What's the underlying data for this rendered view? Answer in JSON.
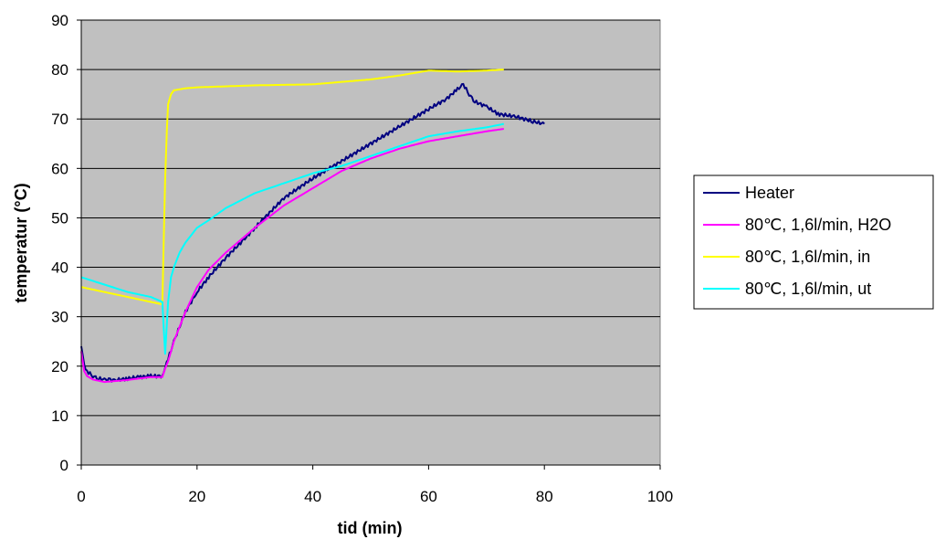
{
  "chart_data": {
    "type": "line",
    "title": "",
    "xlabel": "tid (min)",
    "ylabel": "temperatur (°C)",
    "xlim": [
      0,
      100
    ],
    "ylim": [
      0,
      90
    ],
    "xticks": [
      0,
      20,
      40,
      60,
      80,
      100
    ],
    "yticks": [
      0,
      10,
      20,
      30,
      40,
      50,
      60,
      70,
      80,
      90
    ],
    "grid": "horizontal",
    "plot_background": "#c0c0c0",
    "legend_position": "right",
    "series": [
      {
        "name": "Heater",
        "color": "#000080",
        "x": [
          0,
          0.5,
          1,
          2,
          3,
          4,
          5,
          6,
          8,
          10,
          12,
          14,
          14.5,
          15,
          16,
          18,
          20,
          22,
          25,
          28,
          30,
          35,
          40,
          45,
          50,
          55,
          60,
          63,
          65,
          66,
          67,
          68,
          70,
          72,
          75,
          78,
          80
        ],
        "y": [
          24,
          20,
          19,
          18,
          17.5,
          17.3,
          17.2,
          17.2,
          17.5,
          17.8,
          18,
          18,
          20,
          21.5,
          25,
          31,
          35,
          38,
          42,
          45.5,
          48,
          54,
          58,
          61.5,
          65,
          68.5,
          72,
          74,
          76,
          77,
          75,
          73.5,
          72.5,
          71,
          70.5,
          69.5,
          69
        ]
      },
      {
        "name": "80℃, 1,6l/min, H2O",
        "color": "#ff00ff",
        "x": [
          0,
          0.5,
          1,
          2,
          4,
          6,
          8,
          10,
          12,
          14,
          14.5,
          15,
          16,
          18,
          20,
          22,
          25,
          28,
          30,
          35,
          40,
          45,
          50,
          55,
          60,
          65,
          70,
          73
        ],
        "y": [
          23,
          19,
          18,
          17.3,
          16.8,
          17,
          17.2,
          17.5,
          17.8,
          17.8,
          19.5,
          21,
          25,
          31,
          36,
          39.5,
          43,
          46,
          48,
          52.5,
          56,
          59.5,
          62,
          64,
          65.5,
          66.5,
          67.5,
          68
        ]
      },
      {
        "name": "80℃, 1,6l/min, in",
        "color": "#ffff00",
        "x": [
          0,
          4,
          8,
          12,
          14,
          14.5,
          14.8,
          15,
          15.5,
          16,
          18,
          20,
          25,
          30,
          40,
          50,
          55,
          60,
          65,
          70,
          73
        ],
        "y": [
          36,
          35,
          34,
          33,
          32.5,
          58,
          68,
          73,
          75,
          75.8,
          76.2,
          76.4,
          76.6,
          76.8,
          77,
          78,
          78.8,
          79.8,
          79.6,
          79.8,
          80
        ]
      },
      {
        "name": "80℃, 1,6l/min, ut",
        "color": "#00ffff",
        "x": [
          0,
          4,
          8,
          12,
          14,
          14.5,
          15,
          15.5,
          16,
          17,
          18,
          20,
          22,
          25,
          30,
          35,
          40,
          45,
          50,
          55,
          60,
          65,
          70,
          73
        ],
        "y": [
          38,
          36.5,
          35,
          34,
          33,
          22.5,
          33,
          38,
          40,
          43,
          45,
          48,
          49.5,
          52,
          55,
          57,
          59,
          60.5,
          62.5,
          64.5,
          66.5,
          67.5,
          68.3,
          69
        ]
      }
    ]
  }
}
